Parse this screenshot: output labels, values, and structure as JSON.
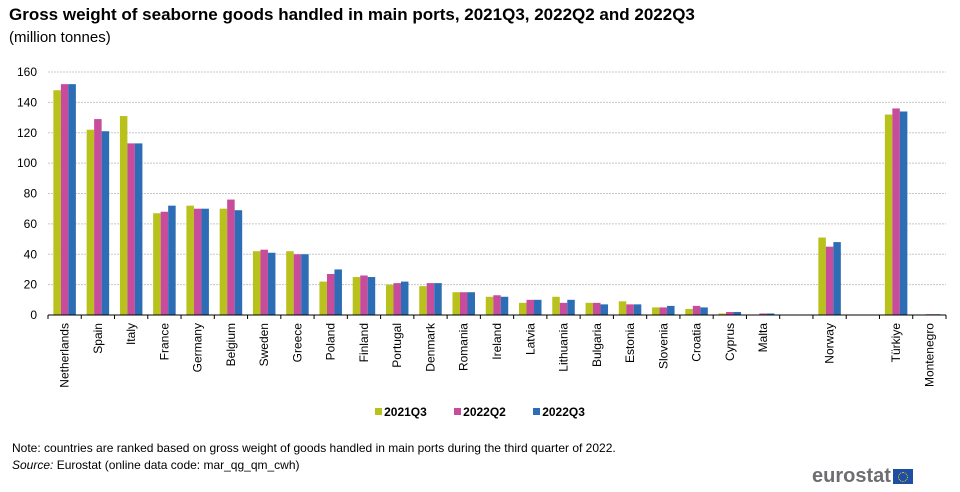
{
  "header": {
    "title": "Gross weight of seaborne goods handled in main ports, 2021Q3, 2022Q2 and 2022Q3",
    "subtitle": "(million tonnes)"
  },
  "chart_data": {
    "type": "bar",
    "title": "Gross weight of seaborne goods handled in main ports, 2021Q3, 2022Q2 and 2022Q3",
    "subtitle": "(million tonnes)",
    "xlabel": "",
    "ylabel": "million tonnes",
    "ylim": [
      0,
      160
    ],
    "yticks": [
      0,
      20,
      40,
      60,
      80,
      100,
      120,
      140,
      160
    ],
    "grid": true,
    "legend_position": "bottom",
    "categories": [
      "Netherlands",
      "Spain",
      "Italy",
      "France",
      "Germany",
      "Belgium",
      "Sweden",
      "Greece",
      "Poland",
      "Finland",
      "Portugal",
      "Denmark",
      "Romania",
      "Ireland",
      "Latvia",
      "Lithuania",
      "Bulgaria",
      "Estonia",
      "Slovenia",
      "Croatia",
      "Cyprus",
      "Malta",
      "",
      "Norway",
      "",
      "Türkiye",
      "Montenegro"
    ],
    "series": [
      {
        "name": "2021Q3",
        "color": "#b9c11c",
        "values": [
          148,
          122,
          131,
          67,
          72,
          70,
          42,
          42,
          22,
          25,
          20,
          19,
          15,
          12,
          8,
          12,
          8,
          9,
          5,
          4,
          1,
          0.2,
          null,
          51,
          null,
          132,
          0.2
        ]
      },
      {
        "name": "2022Q2",
        "color": "#c74c9b",
        "values": [
          152,
          129,
          113,
          68,
          70,
          76,
          43,
          40,
          27,
          26,
          21,
          21,
          15,
          13,
          10,
          8,
          8,
          7,
          5,
          6,
          2,
          1,
          null,
          45,
          null,
          136,
          0.5
        ]
      },
      {
        "name": "2022Q3",
        "color": "#2d6db5",
        "values": [
          152,
          121,
          113,
          72,
          70,
          69,
          41,
          40,
          30,
          25,
          22,
          21,
          15,
          12,
          10,
          10,
          7,
          7,
          6,
          5,
          2,
          1,
          null,
          48,
          null,
          134,
          0.5
        ]
      }
    ]
  },
  "legend": {
    "items": [
      {
        "label": "2021Q3",
        "color": "#b9c11c"
      },
      {
        "label": "2022Q2",
        "color": "#c74c9b"
      },
      {
        "label": "2022Q3",
        "color": "#2d6db5"
      }
    ]
  },
  "footer": {
    "note": "Note: countries are ranked based on gross weight of goods handled in main ports during the third quarter of 2022.",
    "source_label": "Source:",
    "source_text": " Eurostat (online data code: mar_qg_qm_cwh)",
    "logo_text": "eurostat"
  }
}
